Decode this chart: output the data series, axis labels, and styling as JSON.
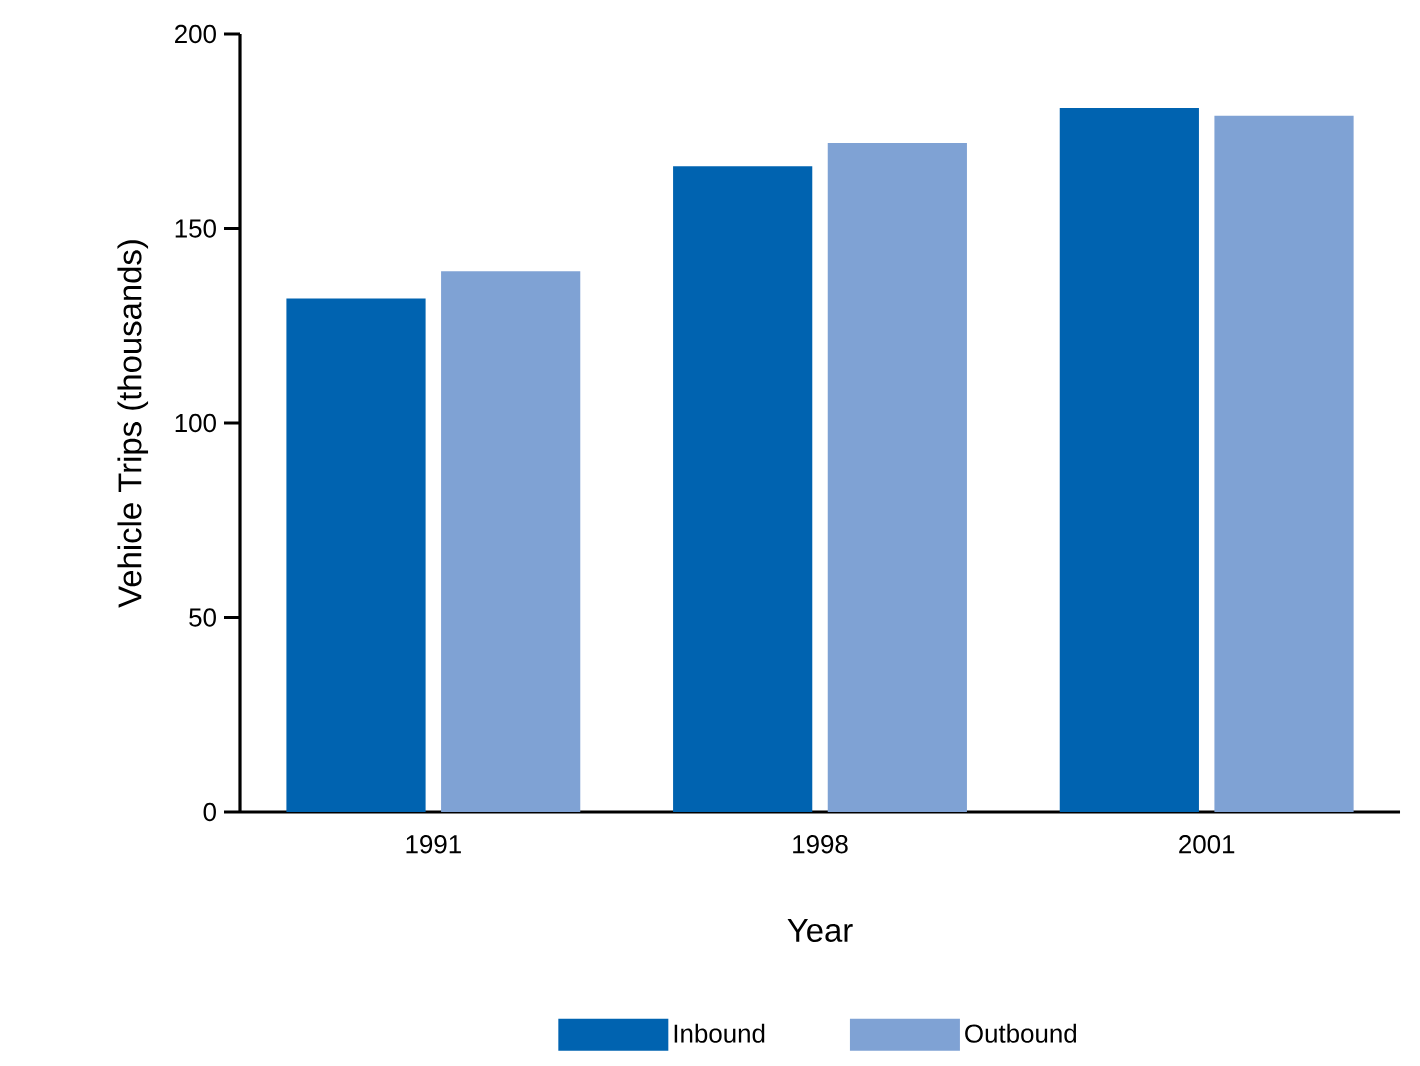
{
  "chart_data": {
    "type": "bar",
    "xlabel": "Year",
    "ylabel": "Vehicle Trips (thousands)",
    "categories": [
      "1991",
      "1998",
      "2001"
    ],
    "series": [
      {
        "name": "Inbound",
        "color": "#0063b0",
        "values": [
          132,
          166,
          181
        ]
      },
      {
        "name": "Outbound",
        "color": "#7fa2d4",
        "values": [
          139,
          172,
          179
        ]
      }
    ],
    "ylim": [
      0,
      200
    ],
    "yticks": [
      0,
      50,
      100,
      150,
      200
    ],
    "legend": "bottom"
  }
}
